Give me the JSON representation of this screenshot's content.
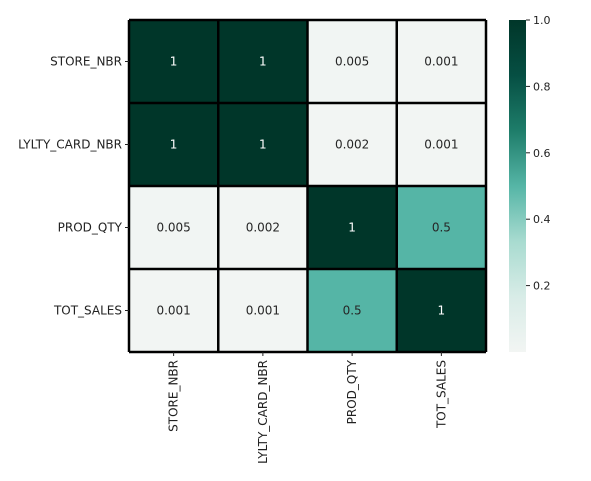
{
  "chart_data": {
    "type": "heatmap",
    "title": "",
    "xlabel": "",
    "ylabel": "",
    "x_labels": [
      "STORE_NBR",
      "LYLTY_CARD_NBR",
      "PROD_QTY",
      "TOT_SALES"
    ],
    "y_labels": [
      "STORE_NBR",
      "LYLTY_CARD_NBR",
      "PROD_QTY",
      "TOT_SALES"
    ],
    "values": [
      [
        1.0,
        1.0,
        0.005,
        0.001
      ],
      [
        1.0,
        1.0,
        0.002,
        0.001
      ],
      [
        0.005,
        0.002,
        1.0,
        0.5
      ],
      [
        0.001,
        0.001,
        0.5,
        1.0
      ]
    ],
    "annotations": [
      [
        "1",
        "1",
        "0.005",
        "0.001"
      ],
      [
        "1",
        "1",
        "0.002",
        "0.001"
      ],
      [
        "0.005",
        "0.002",
        "1",
        "0.5"
      ],
      [
        "0.001",
        "0.001",
        "0.5",
        "1"
      ]
    ],
    "colorbar": {
      "range": [
        0.0,
        1.0
      ],
      "ticks": [
        0.2,
        0.4,
        0.6,
        0.8,
        1.0
      ],
      "tick_labels": [
        "0.2",
        "0.4",
        "0.6",
        "0.8",
        "1.0"
      ],
      "placement": "right"
    },
    "colormap": [
      "#f2f5f3",
      "#d8ece7",
      "#a8dbd0",
      "#55b5a6",
      "#1e7d6a",
      "#064f43",
      "#003629"
    ],
    "cell_border_color": "#000000",
    "grid": false
  }
}
